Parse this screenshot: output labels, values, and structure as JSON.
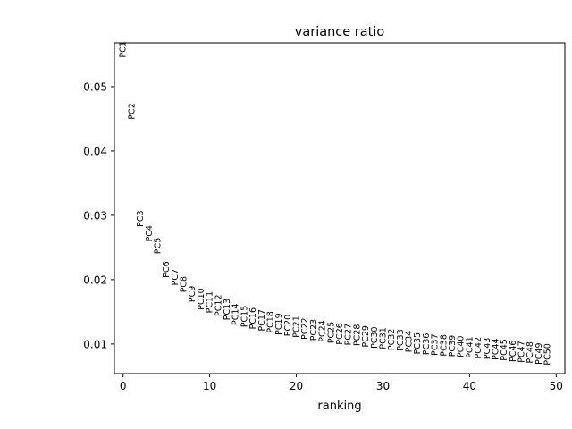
{
  "chart_data": {
    "type": "scatter",
    "title": "variance ratio",
    "xlabel": "ranking",
    "ylabel": "",
    "xlim": [
      -1,
      51
    ],
    "ylim": [
      0.0054,
      0.0568
    ],
    "grid": false,
    "x_ticks": [
      {
        "value": 0,
        "label": "0"
      },
      {
        "value": 10,
        "label": "10"
      },
      {
        "value": 20,
        "label": "20"
      },
      {
        "value": 30,
        "label": "30"
      },
      {
        "value": 40,
        "label": "40"
      },
      {
        "value": 50,
        "label": "50"
      }
    ],
    "y_ticks": [
      {
        "value": 0.01,
        "label": "0.01"
      },
      {
        "value": 0.02,
        "label": "0.02"
      },
      {
        "value": 0.03,
        "label": "0.03"
      },
      {
        "value": 0.04,
        "label": "0.04"
      },
      {
        "value": 0.05,
        "label": "0.05"
      }
    ],
    "points": [
      {
        "label": "PC1",
        "x": 0,
        "y": 0.0545
      },
      {
        "label": "PC2",
        "x": 1,
        "y": 0.0449
      },
      {
        "label": "PC3",
        "x": 2,
        "y": 0.0282
      },
      {
        "label": "PC4",
        "x": 3,
        "y": 0.0259
      },
      {
        "label": "PC5",
        "x": 4,
        "y": 0.024
      },
      {
        "label": "PC6",
        "x": 5,
        "y": 0.0203
      },
      {
        "label": "PC7",
        "x": 6,
        "y": 0.0191
      },
      {
        "label": "PC8",
        "x": 7,
        "y": 0.018
      },
      {
        "label": "PC9",
        "x": 8,
        "y": 0.0165
      },
      {
        "label": "PC10",
        "x": 9,
        "y": 0.0153
      },
      {
        "label": "PC11",
        "x": 10,
        "y": 0.0148
      },
      {
        "label": "PC12",
        "x": 11,
        "y": 0.0143
      },
      {
        "label": "PC13",
        "x": 12,
        "y": 0.0137
      },
      {
        "label": "PC14",
        "x": 13,
        "y": 0.0129
      },
      {
        "label": "PC15",
        "x": 14,
        "y": 0.0126
      },
      {
        "label": "PC16",
        "x": 15,
        "y": 0.0123
      },
      {
        "label": "PC17",
        "x": 16,
        "y": 0.012
      },
      {
        "label": "PC18",
        "x": 17,
        "y": 0.0117
      },
      {
        "label": "PC19",
        "x": 18,
        "y": 0.0114
      },
      {
        "label": "PC20",
        "x": 19,
        "y": 0.0112
      },
      {
        "label": "PC21",
        "x": 20,
        "y": 0.011
      },
      {
        "label": "PC22",
        "x": 21,
        "y": 0.0107
      },
      {
        "label": "PC23",
        "x": 22,
        "y": 0.0105
      },
      {
        "label": "PC24",
        "x": 23,
        "y": 0.0103
      },
      {
        "label": "PC25",
        "x": 24,
        "y": 0.0101
      },
      {
        "label": "PC26",
        "x": 25,
        "y": 0.0099
      },
      {
        "label": "PC27",
        "x": 26,
        "y": 0.0098
      },
      {
        "label": "PC28",
        "x": 27,
        "y": 0.0097
      },
      {
        "label": "PC29",
        "x": 28,
        "y": 0.0095
      },
      {
        "label": "PC30",
        "x": 29,
        "y": 0.0093
      },
      {
        "label": "PC31",
        "x": 30,
        "y": 0.0092
      },
      {
        "label": "PC32",
        "x": 31,
        "y": 0.009
      },
      {
        "label": "PC33",
        "x": 32,
        "y": 0.0089
      },
      {
        "label": "PC34",
        "x": 33,
        "y": 0.0087
      },
      {
        "label": "PC35",
        "x": 34,
        "y": 0.0084
      },
      {
        "label": "PC36",
        "x": 35,
        "y": 0.0083
      },
      {
        "label": "PC37",
        "x": 36,
        "y": 0.0082
      },
      {
        "label": "PC38",
        "x": 37,
        "y": 0.0081
      },
      {
        "label": "PC39",
        "x": 38,
        "y": 0.008
      },
      {
        "label": "PC40",
        "x": 39,
        "y": 0.0079
      },
      {
        "label": "PC41",
        "x": 40,
        "y": 0.0078
      },
      {
        "label": "PC42",
        "x": 41,
        "y": 0.0077
      },
      {
        "label": "PC43",
        "x": 42,
        "y": 0.0076
      },
      {
        "label": "PC44",
        "x": 43,
        "y": 0.0075
      },
      {
        "label": "PC45",
        "x": 44,
        "y": 0.0074
      },
      {
        "label": "PC46",
        "x": 45,
        "y": 0.0072
      },
      {
        "label": "PC47",
        "x": 46,
        "y": 0.0071
      },
      {
        "label": "PC48",
        "x": 47,
        "y": 0.007
      },
      {
        "label": "PC49",
        "x": 48,
        "y": 0.0068
      },
      {
        "label": "PC50",
        "x": 49,
        "y": 0.0067
      }
    ]
  }
}
